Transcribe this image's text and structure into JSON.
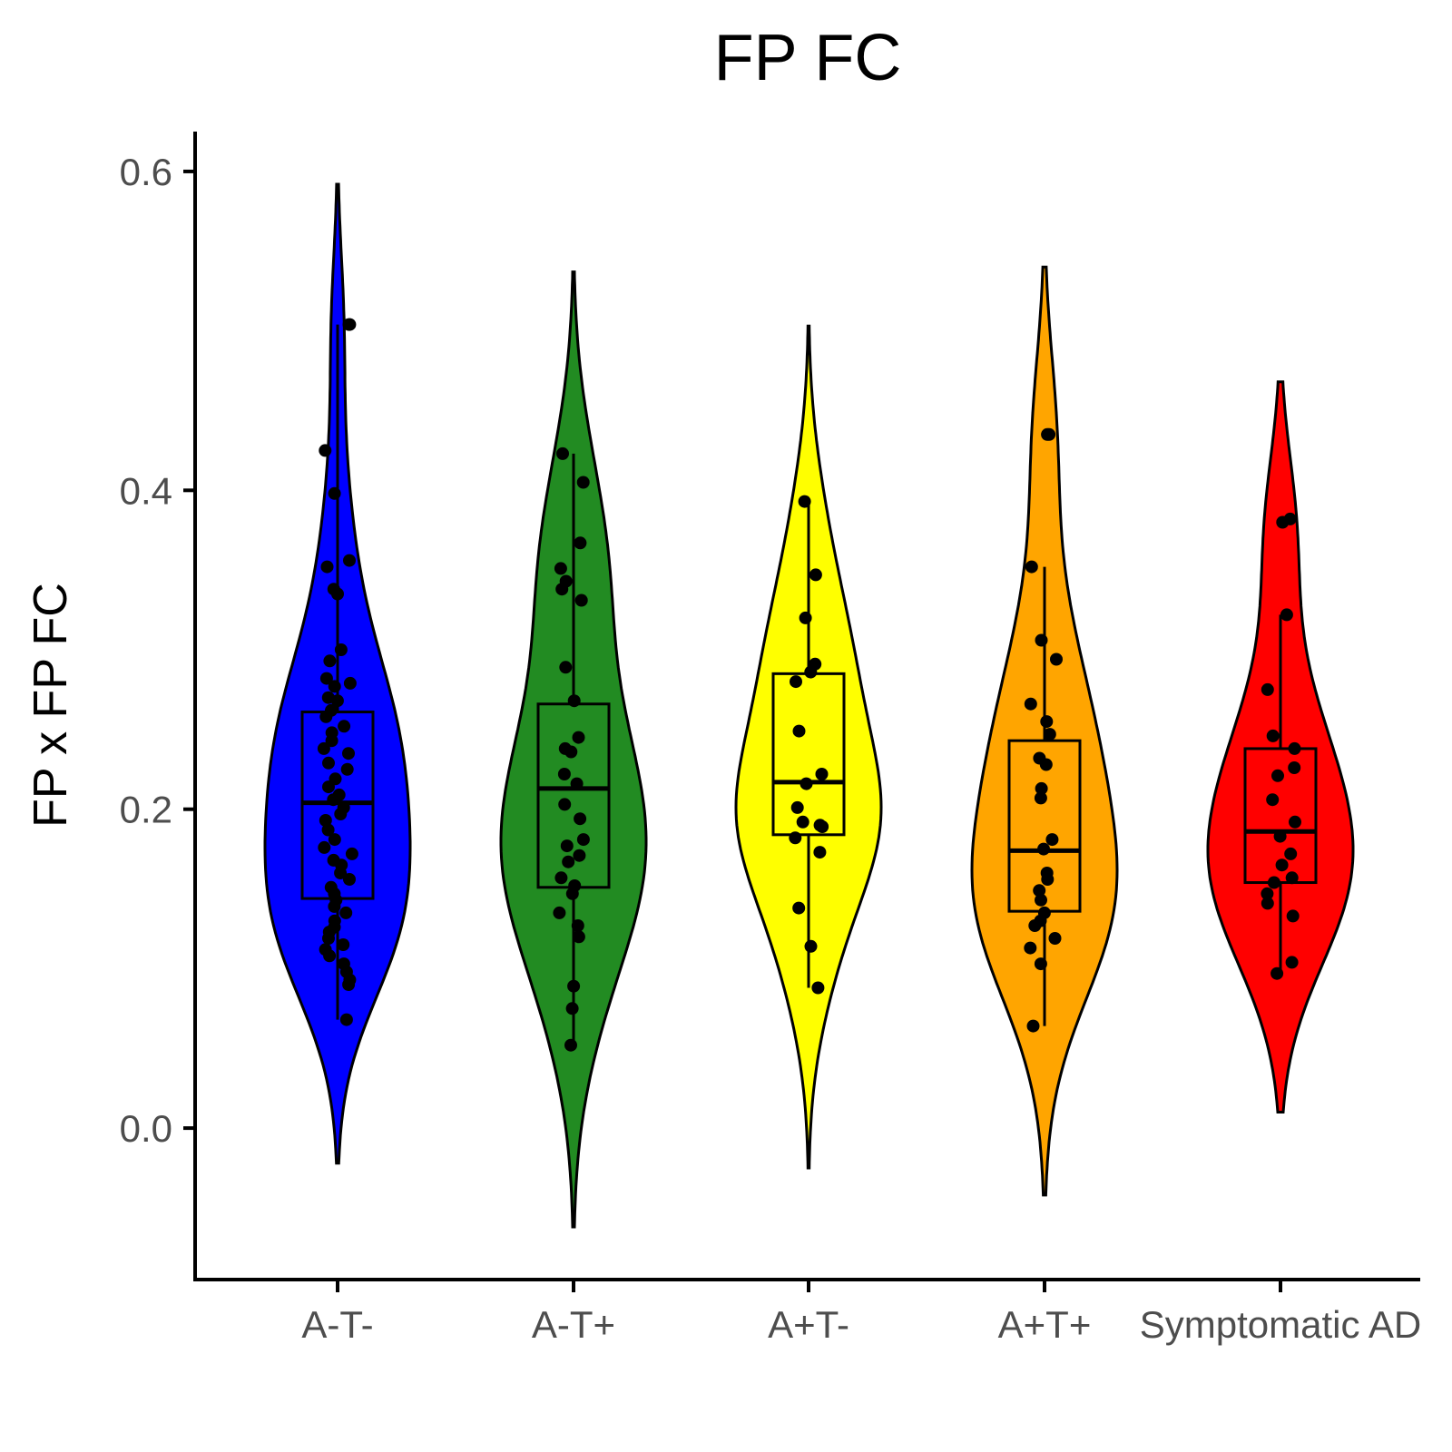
{
  "chart_data": {
    "type": "violin",
    "title": "FP FC",
    "xlabel": "",
    "ylabel": "FP x FP FC",
    "ylim": [
      -0.095,
      0.625
    ],
    "yticks": [
      0.0,
      0.2,
      0.4,
      0.6
    ],
    "ytick_labels": [
      "0.0",
      "0.2",
      "0.4",
      "0.6"
    ],
    "categories": [
      "A-T-",
      "A-T+",
      "A+T-",
      "A+T+",
      "Symptomatic AD"
    ],
    "grid": false,
    "legend": "none",
    "series": [
      {
        "category": "A-T-",
        "color": "#0000ff",
        "violin_range": [
          -0.022,
          0.592
        ],
        "box": {
          "q1": 0.144,
          "median": 0.204,
          "q3": 0.261,
          "whisker_low": 0.068,
          "whisker_high": 0.504
        },
        "points": [
          0.504,
          0.504,
          0.425,
          0.398,
          0.356,
          0.352,
          0.338,
          0.335,
          0.3,
          0.293,
          0.282,
          0.279,
          0.277,
          0.27,
          0.268,
          0.262,
          0.258,
          0.252,
          0.248,
          0.243,
          0.238,
          0.235,
          0.229,
          0.225,
          0.219,
          0.214,
          0.209,
          0.206,
          0.201,
          0.197,
          0.193,
          0.187,
          0.181,
          0.176,
          0.172,
          0.168,
          0.165,
          0.16,
          0.156,
          0.151,
          0.147,
          0.143,
          0.139,
          0.135,
          0.13,
          0.126,
          0.123,
          0.119,
          0.115,
          0.112,
          0.108,
          0.103,
          0.098,
          0.093,
          0.09,
          0.068
        ]
      },
      {
        "category": "A-T+",
        "color": "#228b22",
        "violin_range": [
          -0.062,
          0.537
        ],
        "box": {
          "q1": 0.151,
          "median": 0.213,
          "q3": 0.266,
          "whisker_low": 0.052,
          "whisker_high": 0.423
        },
        "points": [
          0.423,
          0.405,
          0.367,
          0.351,
          0.343,
          0.338,
          0.331,
          0.289,
          0.268,
          0.245,
          0.238,
          0.236,
          0.222,
          0.216,
          0.203,
          0.194,
          0.181,
          0.177,
          0.171,
          0.167,
          0.157,
          0.152,
          0.147,
          0.135,
          0.127,
          0.12,
          0.089,
          0.075,
          0.052
        ]
      },
      {
        "category": "A+T-",
        "color": "#ffff00",
        "violin_range": [
          -0.025,
          0.503
        ],
        "box": {
          "q1": 0.184,
          "median": 0.217,
          "q3": 0.285,
          "whisker_low": 0.088,
          "whisker_high": 0.393
        },
        "points": [
          0.393,
          0.347,
          0.32,
          0.291,
          0.286,
          0.28,
          0.249,
          0.222,
          0.216,
          0.201,
          0.192,
          0.19,
          0.189,
          0.182,
          0.173,
          0.138,
          0.114,
          0.088
        ]
      },
      {
        "category": "A+T+",
        "color": "#ffa500",
        "violin_range": [
          -0.042,
          0.54
        ],
        "box": {
          "q1": 0.136,
          "median": 0.174,
          "q3": 0.243,
          "whisker_low": 0.064,
          "whisker_high": 0.352
        },
        "points": [
          0.435,
          0.435,
          0.352,
          0.306,
          0.294,
          0.266,
          0.255,
          0.247,
          0.232,
          0.228,
          0.213,
          0.207,
          0.181,
          0.175,
          0.16,
          0.156,
          0.149,
          0.143,
          0.135,
          0.13,
          0.127,
          0.119,
          0.113,
          0.103,
          0.064
        ]
      },
      {
        "category": "Symptomatic AD",
        "color": "#ff0000",
        "violin_range": [
          0.01,
          0.468
        ],
        "box": {
          "q1": 0.154,
          "median": 0.186,
          "q3": 0.238,
          "whisker_low": 0.097,
          "whisker_high": 0.322
        },
        "points": [
          0.382,
          0.38,
          0.322,
          0.275,
          0.246,
          0.238,
          0.226,
          0.221,
          0.206,
          0.192,
          0.183,
          0.172,
          0.165,
          0.157,
          0.154,
          0.147,
          0.141,
          0.133,
          0.104,
          0.097
        ]
      }
    ]
  }
}
